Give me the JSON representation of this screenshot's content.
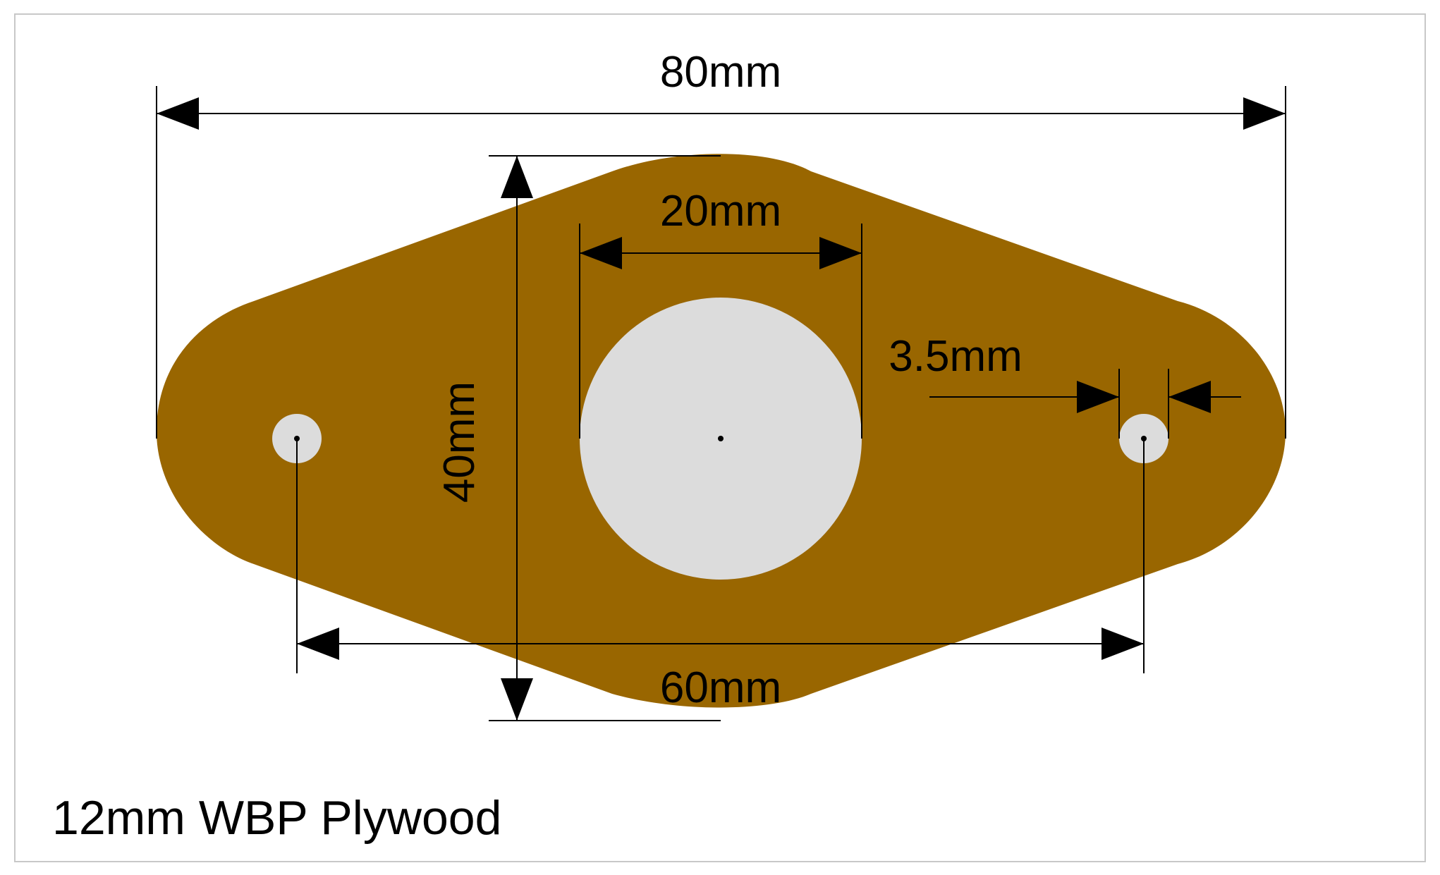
{
  "drawing": {
    "dimensions": {
      "overall_length": "80mm",
      "hole_spacing": "60mm",
      "height": "40mm",
      "center_hole_diameter": "20mm",
      "small_hole_diameter": "3.5mm"
    },
    "caption": "12mm WBP Plywood"
  },
  "colors": {
    "plate": "#996600",
    "hole": "#DCDCDC",
    "line": "#000000",
    "frame": "#C8C8C8",
    "background": "#FFFFFF"
  }
}
